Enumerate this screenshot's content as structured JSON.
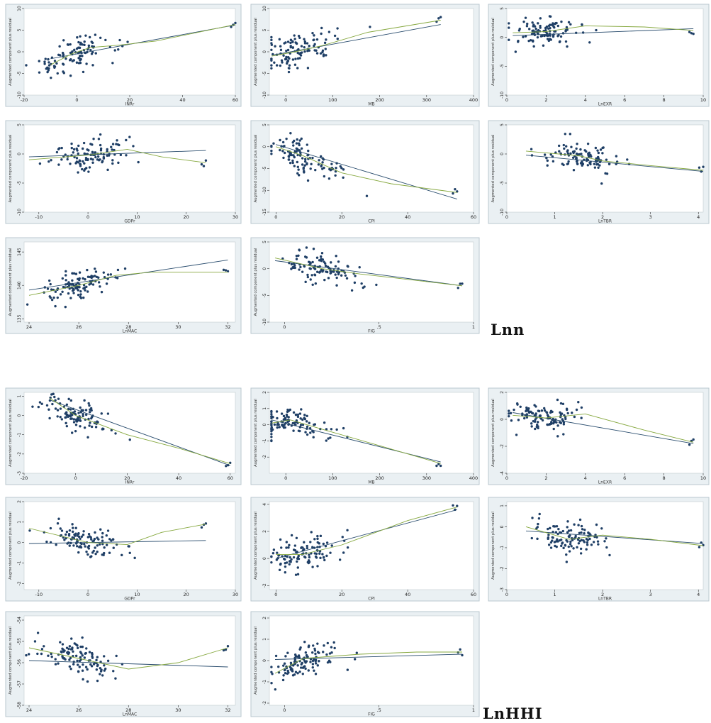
{
  "sections": [
    {
      "label": "Lnn"
    },
    {
      "label": "LnHHI"
    }
  ],
  "chart_data": [
    {
      "type": "scatter",
      "section": "Lnn",
      "xlabel": "INRr",
      "ylabel": "Augmented component plus residual",
      "xlim": [
        -20,
        60
      ],
      "ylim": [
        -10,
        10
      ],
      "xticks": [
        "-20",
        "0",
        "20",
        "40",
        "60"
      ],
      "yticks": [
        "-10",
        "-5",
        "0",
        "5",
        "10"
      ],
      "lin": [
        [
          -10,
          -1.6
        ],
        [
          60,
          6.2
        ]
      ],
      "low": [
        [
          -10,
          -3
        ],
        [
          -2,
          -0.5
        ],
        [
          5,
          1
        ],
        [
          15,
          1.5
        ],
        [
          30,
          2.5
        ],
        [
          60,
          6.3
        ]
      ]
    },
    {
      "type": "scatter",
      "section": "Lnn",
      "xlabel": "MB",
      "ylabel": "Augmented component plus residual",
      "xlim": [
        -35,
        400
      ],
      "ylim": [
        -10,
        10
      ],
      "xticks": [
        "0",
        "100",
        "200",
        "300",
        "400"
      ],
      "yticks": [
        "-10",
        "-5",
        "0",
        "5",
        "10"
      ],
      "lin": [
        [
          -30,
          -0.8
        ],
        [
          330,
          6.3
        ]
      ],
      "low": [
        [
          -30,
          -1
        ],
        [
          20,
          0
        ],
        [
          80,
          1.5
        ],
        [
          175,
          4.5
        ],
        [
          330,
          7.3
        ]
      ]
    },
    {
      "type": "scatter",
      "section": "Lnn",
      "xlabel": "LnEXR",
      "ylabel": "Augmented component plus residual",
      "xlim": [
        0,
        10
      ],
      "ylim": [
        -10,
        5
      ],
      "xticks": [
        "0",
        "2",
        "4",
        "6",
        "8",
        "10"
      ],
      "yticks": [
        "-10",
        "-5",
        "0",
        "5"
      ],
      "lin": [
        [
          0.3,
          0.3
        ],
        [
          9.5,
          1.5
        ]
      ],
      "low": [
        [
          0.3,
          0.8
        ],
        [
          2,
          1
        ],
        [
          4,
          2
        ],
        [
          7,
          1.8
        ],
        [
          9.5,
          1.2
        ]
      ]
    },
    {
      "type": "scatter",
      "section": "Lnn",
      "xlabel": "GDPr",
      "ylabel": "Augmented component plus residual",
      "xlim": [
        -13,
        30
      ],
      "ylim": [
        -10,
        5
      ],
      "xticks": [
        "-10",
        "0",
        "10",
        "20",
        "30"
      ],
      "yticks": [
        "-10",
        "-5",
        "0",
        "5"
      ],
      "lin": [
        [
          -12,
          -0.5
        ],
        [
          24,
          0.6
        ]
      ],
      "low": [
        [
          -12,
          -1
        ],
        [
          0,
          -0.2
        ],
        [
          8,
          0.8
        ],
        [
          15,
          -0.5
        ],
        [
          24,
          -1.5
        ]
      ]
    },
    {
      "type": "scatter",
      "section": "Lnn",
      "xlabel": "CPI",
      "ylabel": "Augmented component plus residual",
      "xlim": [
        -2,
        60
      ],
      "ylim": [
        -15,
        5
      ],
      "xticks": [
        "0",
        "20",
        "40",
        "60"
      ],
      "yticks": [
        "-15",
        "-10",
        "-5",
        "0",
        "5"
      ],
      "lin": [
        [
          0,
          0.5
        ],
        [
          55,
          -12
        ]
      ],
      "low": [
        [
          0,
          0
        ],
        [
          8,
          -2
        ],
        [
          20,
          -6
        ],
        [
          35,
          -8.5
        ],
        [
          55,
          -10.5
        ]
      ]
    },
    {
      "type": "scatter",
      "section": "Lnn",
      "xlabel": "LnTBR",
      "ylabel": "Augmented component plus residual",
      "xlim": [
        0,
        4.1
      ],
      "ylim": [
        -10,
        5
      ],
      "xticks": [
        "0",
        "1",
        "2",
        "3",
        "4"
      ],
      "yticks": [
        "-10",
        "-5",
        "0",
        "5"
      ],
      "lin": [
        [
          0.4,
          -0.2
        ],
        [
          4.1,
          -3
        ]
      ],
      "low": [
        [
          0.4,
          0.5
        ],
        [
          1.5,
          -0.3
        ],
        [
          2,
          -1.2
        ],
        [
          3,
          -2
        ],
        [
          4.1,
          -2.8
        ]
      ]
    },
    {
      "type": "scatter",
      "section": "Lnn",
      "xlabel": "LnMAC",
      "ylabel": "Augmented component plus residual",
      "xlim": [
        23.8,
        32.3
      ],
      "ylim": [
        134.5,
        146.5
      ],
      "xticks": [
        "24",
        "26",
        "28",
        "30",
        "32"
      ],
      "yticks": [
        "135",
        "140",
        "145"
      ],
      "lin": [
        [
          24,
          139.3
        ],
        [
          32,
          143.8
        ]
      ],
      "low": [
        [
          24,
          138.5
        ],
        [
          26,
          140
        ],
        [
          27.5,
          141.5
        ],
        [
          29,
          142
        ],
        [
          32,
          142
        ]
      ]
    },
    {
      "type": "scatter",
      "section": "Lnn",
      "xlabel": "FIG",
      "ylabel": "Augmented component plus residual",
      "xlim": [
        -0.08,
        1
      ],
      "ylim": [
        -10,
        5
      ],
      "xticks": [
        "0",
        ".5",
        "1"
      ],
      "yticks": [
        "-10",
        "-5",
        "0",
        "5"
      ],
      "lin": [
        [
          -0.05,
          1.5
        ],
        [
          0.94,
          -3.2
        ]
      ],
      "low": [
        [
          -0.05,
          2
        ],
        [
          0.2,
          0
        ],
        [
          0.4,
          -1
        ],
        [
          0.6,
          -1.8
        ],
        [
          0.94,
          -3.2
        ]
      ]
    },
    {
      "type": "scatter",
      "section": "LnHHI",
      "xlabel": "INRr",
      "ylabel": "Augmented component plus residual",
      "xlim": [
        -20,
        62
      ],
      "ylim": [
        -3,
        1.2
      ],
      "xticks": [
        "-20",
        "0",
        "20",
        "40",
        "60"
      ],
      "yticks": [
        "-3",
        "-2",
        "-1",
        "0",
        "1"
      ],
      "lin": [
        [
          -10,
          0.8
        ],
        [
          60,
          -2.6
        ]
      ],
      "low": [
        [
          -10,
          0.9
        ],
        [
          0,
          0
        ],
        [
          20,
          -1
        ],
        [
          40,
          -1.7
        ],
        [
          60,
          -2.5
        ]
      ]
    },
    {
      "type": "scatter",
      "section": "LnHHI",
      "xlabel": "MB",
      "ylabel": "Augmented component plus residual",
      "xlim": [
        -35,
        400
      ],
      "ylim": [
        -3,
        2
      ],
      "xticks": [
        "0",
        "100",
        "200",
        "300",
        "400"
      ],
      "yticks": [
        "-2",
        "-1",
        "0",
        "1",
        "2"
      ],
      "lin": [
        [
          -30,
          0.3
        ],
        [
          330,
          -2.3
        ]
      ],
      "low": [
        [
          -30,
          0.1
        ],
        [
          10,
          0.3
        ],
        [
          80,
          -0.3
        ],
        [
          200,
          -1.3
        ],
        [
          330,
          -2.4
        ]
      ]
    },
    {
      "type": "scatter",
      "section": "LnHHI",
      "xlabel": "LnEXR",
      "ylabel": "Augmented component plus residual",
      "xlim": [
        0,
        10
      ],
      "ylim": [
        -4,
        2
      ],
      "xticks": [
        "0",
        "2",
        "4",
        "6",
        "8",
        "10"
      ],
      "yticks": [
        "-4",
        "-2",
        "0",
        "2"
      ],
      "lin": [
        [
          0.3,
          0.5
        ],
        [
          9.5,
          -1.8
        ]
      ],
      "low": [
        [
          0.3,
          0.3
        ],
        [
          2,
          0.1
        ],
        [
          4,
          0.4
        ],
        [
          7,
          -0.8
        ],
        [
          9.5,
          -1.7
        ]
      ]
    },
    {
      "type": "scatter",
      "section": "LnHHI",
      "xlabel": "GDPr",
      "ylabel": "Augmented component plus residual",
      "xlim": [
        -13,
        30
      ],
      "ylim": [
        -2.3,
        2
      ],
      "xticks": [
        "-10",
        "0",
        "10",
        "20",
        "30"
      ],
      "yticks": [
        "-2",
        "-1",
        "0",
        "1",
        "2"
      ],
      "lin": [
        [
          -12,
          -0.05
        ],
        [
          24,
          0.1
        ]
      ],
      "low": [
        [
          -12,
          0.7
        ],
        [
          0,
          0
        ],
        [
          8,
          -0.1
        ],
        [
          15,
          0.5
        ],
        [
          24,
          0.9
        ]
      ]
    },
    {
      "type": "scatter",
      "section": "LnHHI",
      "xlabel": "CPI",
      "ylabel": "Augmented component plus residual",
      "xlim": [
        -2,
        60
      ],
      "ylim": [
        -2.3,
        4.2
      ],
      "xticks": [
        "0",
        "20",
        "40",
        "60"
      ],
      "yticks": [
        "-2",
        "0",
        "2",
        "4"
      ],
      "lin": [
        [
          0,
          0
        ],
        [
          55,
          3.6
        ]
      ],
      "low": [
        [
          0,
          0.3
        ],
        [
          8,
          0.3
        ],
        [
          20,
          1
        ],
        [
          40,
          2.8
        ],
        [
          55,
          3.8
        ]
      ]
    },
    {
      "type": "scatter",
      "section": "LnHHI",
      "xlabel": "LnTBR",
      "ylabel": "Augmented component plus residual",
      "xlim": [
        0,
        4.1
      ],
      "ylim": [
        -3,
        1.2
      ],
      "xticks": [
        "0",
        "1",
        "2",
        "3",
        "4"
      ],
      "yticks": [
        "-3",
        "-2",
        "-1",
        "0",
        "1"
      ],
      "lin": [
        [
          0.4,
          -0.2
        ],
        [
          4.1,
          -0.8
        ]
      ],
      "low": [
        [
          0.4,
          0
        ],
        [
          1.3,
          -0.6
        ],
        [
          2,
          -0.4
        ],
        [
          3,
          -0.6
        ],
        [
          4.1,
          -0.9
        ]
      ]
    },
    {
      "type": "scatter",
      "section": "LnHHI",
      "xlabel": "LnMAC",
      "ylabel": "Augmented component plus residual",
      "xlim": [
        23.8,
        32.3
      ],
      "ylim": [
        -58,
        -53.8
      ],
      "xticks": [
        "24",
        "26",
        "28",
        "30",
        "32"
      ],
      "yticks": [
        "-58",
        "-57",
        "-56",
        "-55",
        "-54"
      ],
      "lin": [
        [
          24,
          -55.9
        ],
        [
          32,
          -56.2
        ]
      ],
      "low": [
        [
          24,
          -55.3
        ],
        [
          26,
          -55.8
        ],
        [
          28,
          -56.3
        ],
        [
          30,
          -56
        ],
        [
          32,
          -55.3
        ]
      ]
    },
    {
      "type": "scatter",
      "section": "LnHHI",
      "xlabel": "FIG",
      "ylabel": "Augmented component plus residual",
      "xlim": [
        -0.08,
        1
      ],
      "ylim": [
        -2.1,
        2.1
      ],
      "xticks": [
        "0",
        ".5",
        "1"
      ],
      "yticks": [
        "-2",
        "-1",
        "0",
        "1",
        "2"
      ],
      "lin": [
        [
          -0.05,
          0.05
        ],
        [
          0.94,
          0.3
        ]
      ],
      "low": [
        [
          -0.05,
          -0.6
        ],
        [
          0.1,
          0.1
        ],
        [
          0.4,
          0.3
        ],
        [
          0.7,
          0.4
        ],
        [
          0.94,
          0.4
        ]
      ]
    }
  ]
}
